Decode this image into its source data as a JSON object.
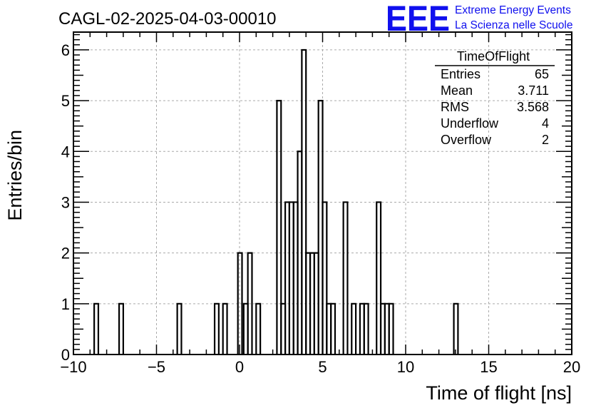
{
  "chart_data": {
    "type": "histogram",
    "title": "CAGL-02-2025-04-03-00010",
    "xlabel": "Time of flight [ns]",
    "ylabel": "Entries/bin",
    "xlim": [
      -10,
      20
    ],
    "ylim": [
      0,
      6.35
    ],
    "bin_width": 0.25,
    "xticks": [
      -10,
      -5,
      0,
      5,
      10,
      15,
      20
    ],
    "yticks": [
      0,
      1,
      2,
      3,
      4,
      5,
      6
    ],
    "grid": true,
    "color": "#000000",
    "bins": [
      {
        "x": -8.75,
        "y": 1
      },
      {
        "x": -7.25,
        "y": 1
      },
      {
        "x": -3.75,
        "y": 1
      },
      {
        "x": -1.5,
        "y": 1
      },
      {
        "x": -1.0,
        "y": 1
      },
      {
        "x": -0.1,
        "y": 2
      },
      {
        "x": 0.25,
        "y": 1
      },
      {
        "x": 0.5,
        "y": 2
      },
      {
        "x": 1.0,
        "y": 1
      },
      {
        "x": 2.25,
        "y": 5
      },
      {
        "x": 2.5,
        "y": 1
      },
      {
        "x": 2.75,
        "y": 3
      },
      {
        "x": 3.0,
        "y": 3
      },
      {
        "x": 3.25,
        "y": 3
      },
      {
        "x": 3.5,
        "y": 4
      },
      {
        "x": 3.75,
        "y": 6
      },
      {
        "x": 4.0,
        "y": 2
      },
      {
        "x": 4.25,
        "y": 2
      },
      {
        "x": 4.5,
        "y": 2
      },
      {
        "x": 4.75,
        "y": 5
      },
      {
        "x": 5.0,
        "y": 3
      },
      {
        "x": 5.25,
        "y": 1
      },
      {
        "x": 5.5,
        "y": 1
      },
      {
        "x": 6.25,
        "y": 3
      },
      {
        "x": 6.75,
        "y": 1
      },
      {
        "x": 7.25,
        "y": 1
      },
      {
        "x": 7.5,
        "y": 1
      },
      {
        "x": 8.25,
        "y": 3
      },
      {
        "x": 8.5,
        "y": 1
      },
      {
        "x": 8.75,
        "y": 1
      },
      {
        "x": 9.0,
        "y": 1
      },
      {
        "x": 12.9,
        "y": 1
      }
    ],
    "stats_box": {
      "title": "TimeOfFlight",
      "rows": [
        {
          "label": "Entries",
          "value": "65"
        },
        {
          "label": "Mean",
          "value": "3.711"
        },
        {
          "label": "RMS",
          "value": "3.568"
        },
        {
          "label": "Underflow",
          "value": "4"
        },
        {
          "label": "Overflow",
          "value": "2"
        }
      ]
    }
  },
  "logo": {
    "mark": "EEE",
    "line1": "Extreme Energy Events",
    "line2": "La Scienza nelle Scuole",
    "color": "#1010ee"
  }
}
